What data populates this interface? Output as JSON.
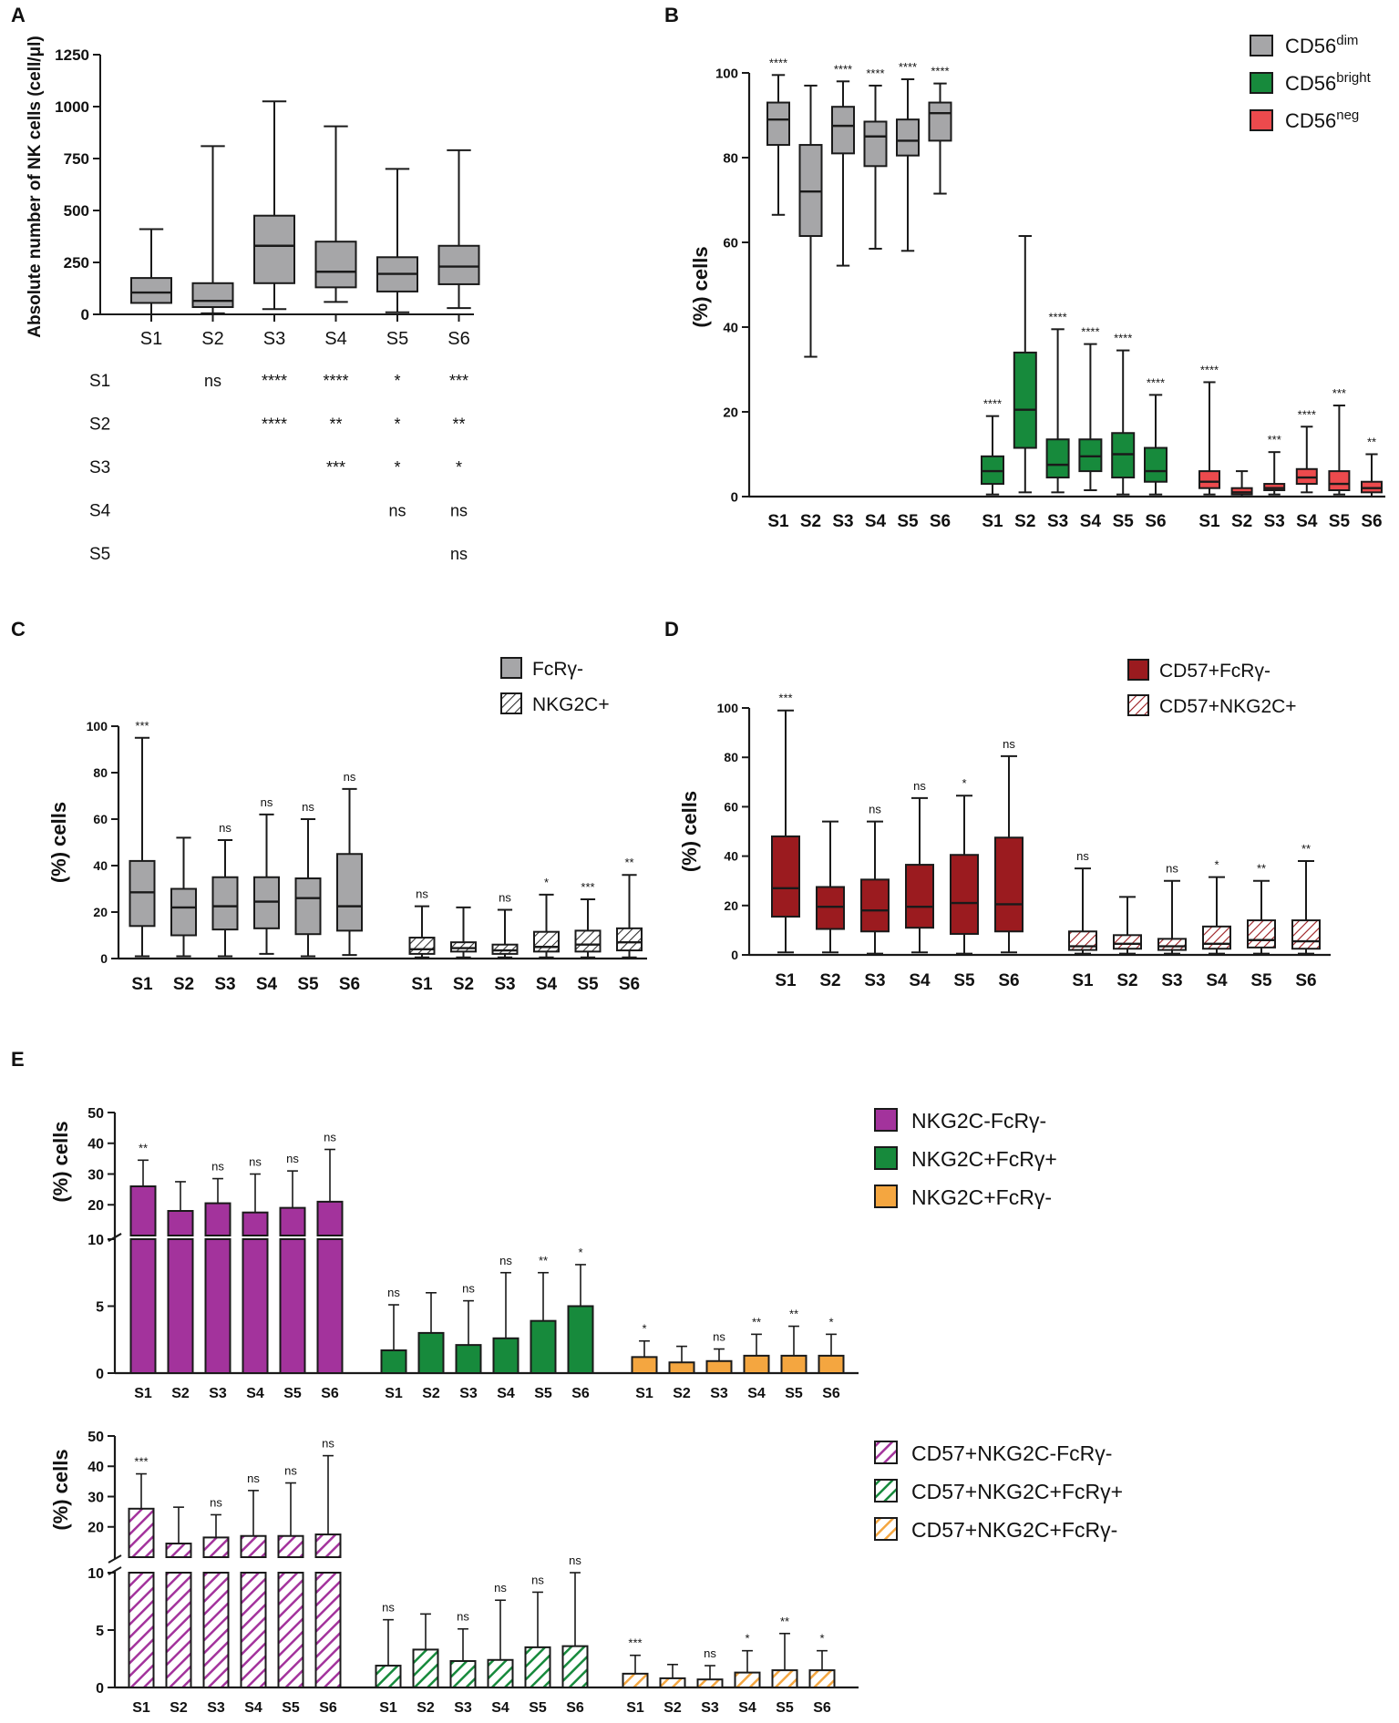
{
  "colors": {
    "gray": "#a6a6a8",
    "green": "#178a3c",
    "red": "#ec4a4d",
    "darkred": "#9b1b1f",
    "purple": "#a3339c",
    "orange": "#f4a640",
    "line": "#1a1a1a"
  },
  "chart_data": [
    {
      "panel": "A",
      "type": "box",
      "ylabel": "Absolute number of NK cells (cell/μl)",
      "ylim": [
        0,
        1250
      ],
      "yticks": [
        "0",
        "250",
        "500",
        "750",
        "1000",
        "1250"
      ],
      "categories": [
        "S1",
        "S2",
        "S3",
        "S4",
        "S5",
        "S6"
      ],
      "series": [
        {
          "name": "NK cells",
          "boxes": [
            {
              "min": 0,
              "q1": 55,
              "median": 105,
              "q3": 175,
              "max": 410
            },
            {
              "min": 5,
              "q1": 35,
              "median": 65,
              "q3": 150,
              "max": 810
            },
            {
              "min": 25,
              "q1": 150,
              "median": 330,
              "q3": 475,
              "max": 1025
            },
            {
              "min": 60,
              "q1": 130,
              "median": 205,
              "q3": 350,
              "max": 905
            },
            {
              "min": 10,
              "q1": 110,
              "median": 195,
              "q3": 275,
              "max": 700
            },
            {
              "min": 30,
              "q1": 145,
              "median": 230,
              "q3": 330,
              "max": 790
            }
          ]
        }
      ],
      "significance_matrix": {
        "columns": [
          "S1",
          "S2",
          "S3",
          "S4",
          "S5",
          "S6"
        ],
        "rows": [
          {
            "label": "S1",
            "cells": [
              "",
              "ns",
              "****",
              "****",
              "*",
              "***"
            ]
          },
          {
            "label": "S2",
            "cells": [
              "",
              "",
              "****",
              "**",
              "*",
              "**"
            ]
          },
          {
            "label": "S3",
            "cells": [
              "",
              "",
              "",
              "***",
              "*",
              "*"
            ]
          },
          {
            "label": "S4",
            "cells": [
              "",
              "",
              "",
              "",
              "ns",
              "ns"
            ]
          },
          {
            "label": "S5",
            "cells": [
              "",
              "",
              "",
              "",
              "",
              "ns"
            ]
          }
        ]
      }
    },
    {
      "panel": "B",
      "type": "box",
      "ylabel": "(%) cells",
      "ylim": [
        0,
        100
      ],
      "yticks": [
        "0",
        "20",
        "40",
        "60",
        "80",
        "100"
      ],
      "categories": [
        "S1",
        "S2",
        "S3",
        "S4",
        "S5",
        "S6"
      ],
      "legend": [
        {
          "base": "CD56",
          "sup": "dim"
        },
        {
          "base": "CD56",
          "sup": "bright"
        },
        {
          "base": "CD56",
          "sup": "neg"
        }
      ],
      "series": [
        {
          "name": "CD56dim",
          "boxes": [
            {
              "min": 66.5,
              "q1": 83,
              "median": 89,
              "q3": 93,
              "max": 99.5
            },
            {
              "min": 33,
              "q1": 61.5,
              "median": 72,
              "q3": 83,
              "max": 97
            },
            {
              "min": 54.5,
              "q1": 81,
              "median": 87.5,
              "q3": 92,
              "max": 98
            },
            {
              "min": 58.5,
              "q1": 78,
              "median": 85,
              "q3": 88.5,
              "max": 97
            },
            {
              "min": 58,
              "q1": 80.5,
              "median": 84,
              "q3": 89,
              "max": 98.5
            },
            {
              "min": 71.5,
              "q1": 84,
              "median": 90.5,
              "q3": 93,
              "max": 97.5
            }
          ],
          "sig": [
            "****",
            "",
            "****",
            "****",
            "****",
            "****"
          ]
        },
        {
          "name": "CD56bright",
          "boxes": [
            {
              "min": 0.5,
              "q1": 3,
              "median": 6,
              "q3": 9.5,
              "max": 19
            },
            {
              "min": 1,
              "q1": 11.5,
              "median": 20.5,
              "q3": 34,
              "max": 61.5
            },
            {
              "min": 1,
              "q1": 4.5,
              "median": 7.5,
              "q3": 13.5,
              "max": 39.5
            },
            {
              "min": 1.5,
              "q1": 6,
              "median": 9.5,
              "q3": 13.5,
              "max": 36
            },
            {
              "min": 0.5,
              "q1": 4.5,
              "median": 10,
              "q3": 15,
              "max": 34.5
            },
            {
              "min": 0.5,
              "q1": 3.5,
              "median": 6,
              "q3": 11.5,
              "max": 24
            }
          ],
          "sig": [
            "****",
            "",
            "****",
            "****",
            "****",
            "****"
          ]
        },
        {
          "name": "CD56neg",
          "boxes": [
            {
              "min": 0.5,
              "q1": 2,
              "median": 3.5,
              "q3": 6,
              "max": 27
            },
            {
              "min": 0,
              "q1": 0.5,
              "median": 1,
              "q3": 2,
              "max": 6
            },
            {
              "min": 0.5,
              "q1": 1.5,
              "median": 2,
              "q3": 3,
              "max": 10.5
            },
            {
              "min": 1,
              "q1": 3,
              "median": 4.5,
              "q3": 6.5,
              "max": 16.5
            },
            {
              "min": 0.5,
              "q1": 1.5,
              "median": 3,
              "q3": 6,
              "max": 21.5
            },
            {
              "min": 0,
              "q1": 1,
              "median": 2,
              "q3": 3.5,
              "max": 10
            }
          ],
          "sig": [
            "****",
            "",
            "***",
            "****",
            "***",
            "**"
          ]
        }
      ]
    },
    {
      "panel": "C",
      "type": "box",
      "ylabel": "(%) cells",
      "ylim": [
        0,
        100
      ],
      "yticks": [
        "0",
        "20",
        "40",
        "60",
        "80",
        "100"
      ],
      "categories": [
        "S1",
        "S2",
        "S3",
        "S4",
        "S5",
        "S6"
      ],
      "legend": [
        "FcRγ-",
        "NKG2C+"
      ],
      "series": [
        {
          "name": "FcRγ-",
          "boxes": [
            {
              "min": 1,
              "q1": 14,
              "median": 28.5,
              "q3": 42,
              "max": 95
            },
            {
              "min": 1,
              "q1": 10,
              "median": 22,
              "q3": 30,
              "max": 52
            },
            {
              "min": 1,
              "q1": 12.5,
              "median": 22.5,
              "q3": 35,
              "max": 51
            },
            {
              "min": 2,
              "q1": 13,
              "median": 24.5,
              "q3": 35,
              "max": 62
            },
            {
              "min": 1,
              "q1": 10.5,
              "median": 26,
              "q3": 34.5,
              "max": 60
            },
            {
              "min": 1.5,
              "q1": 12,
              "median": 22.5,
              "q3": 45,
              "max": 73
            }
          ],
          "sig": [
            "***",
            "",
            "ns",
            "ns",
            "ns",
            "ns"
          ]
        },
        {
          "name": "NKG2C+",
          "boxes": [
            {
              "min": 0.5,
              "q1": 2,
              "median": 4,
              "q3": 9,
              "max": 22.5
            },
            {
              "min": 0.5,
              "q1": 3,
              "median": 4.5,
              "q3": 7,
              "max": 22
            },
            {
              "min": 0.5,
              "q1": 2,
              "median": 3.5,
              "q3": 6,
              "max": 21
            },
            {
              "min": 0.5,
              "q1": 3,
              "median": 5,
              "q3": 11.5,
              "max": 27.5
            },
            {
              "min": 0.5,
              "q1": 3,
              "median": 6,
              "q3": 12,
              "max": 25.5
            },
            {
              "min": 0.5,
              "q1": 3.5,
              "median": 7,
              "q3": 13,
              "max": 36
            }
          ],
          "sig": [
            "ns",
            "",
            "ns",
            "*",
            "***",
            "**"
          ]
        }
      ]
    },
    {
      "panel": "D",
      "type": "box",
      "ylabel": "(%) cells",
      "ylim": [
        0,
        100
      ],
      "yticks": [
        "0",
        "20",
        "40",
        "60",
        "80",
        "100"
      ],
      "categories": [
        "S1",
        "S2",
        "S3",
        "S4",
        "S5",
        "S6"
      ],
      "legend": [
        "CD57+FcRγ-",
        "CD57+NKG2C+"
      ],
      "series": [
        {
          "name": "CD57+FcRγ-",
          "boxes": [
            {
              "min": 1,
              "q1": 15.5,
              "median": 27,
              "q3": 48,
              "max": 99
            },
            {
              "min": 1,
              "q1": 10.5,
              "median": 19.5,
              "q3": 27.5,
              "max": 54
            },
            {
              "min": 0.5,
              "q1": 9.5,
              "median": 18,
              "q3": 30.5,
              "max": 54
            },
            {
              "min": 1,
              "q1": 11,
              "median": 19.5,
              "q3": 36.5,
              "max": 63.5
            },
            {
              "min": 0.5,
              "q1": 8.5,
              "median": 21,
              "q3": 40.5,
              "max": 64.5
            },
            {
              "min": 1,
              "q1": 9.5,
              "median": 20.5,
              "q3": 47.5,
              "max": 80.5
            }
          ],
          "sig": [
            "***",
            "",
            "ns",
            "ns",
            "*",
            "ns"
          ]
        },
        {
          "name": "CD57+NKG2C+",
          "boxes": [
            {
              "min": 0.5,
              "q1": 2,
              "median": 3.5,
              "q3": 9.5,
              "max": 35
            },
            {
              "min": 0.5,
              "q1": 2.5,
              "median": 4.5,
              "q3": 8,
              "max": 23.5
            },
            {
              "min": 0.5,
              "q1": 2,
              "median": 3.5,
              "q3": 6.5,
              "max": 30
            },
            {
              "min": 0.5,
              "q1": 2.5,
              "median": 4.5,
              "q3": 11.5,
              "max": 31.5
            },
            {
              "min": 0.5,
              "q1": 3,
              "median": 6,
              "q3": 14,
              "max": 30
            },
            {
              "min": 0.5,
              "q1": 2.5,
              "median": 5.5,
              "q3": 14,
              "max": 38
            }
          ],
          "sig": [
            "ns",
            "",
            "ns",
            "*",
            "**",
            "**"
          ]
        }
      ]
    },
    {
      "panel": "E",
      "type": "bar",
      "ylabel": "(%) cells",
      "yticks_upper": [
        "20",
        "30",
        "40",
        "50"
      ],
      "yticks_lower": [
        "0",
        "5",
        "10"
      ],
      "categories": [
        "S1",
        "S2",
        "S3",
        "S4",
        "S5",
        "S6"
      ],
      "legend": [
        "NKG2C-FcRγ-",
        "NKG2C+FcRγ+",
        "NKG2C+FcRγ-"
      ],
      "series": [
        {
          "name": "NKG2C-FcRγ-",
          "values": [
            26,
            18,
            20.5,
            17.5,
            19,
            21
          ],
          "errors": [
            34.5,
            27.5,
            28.5,
            30,
            31,
            38
          ],
          "sig": [
            "**",
            "",
            "ns",
            "ns",
            "ns",
            "ns"
          ]
        },
        {
          "name": "NKG2C+FcRγ+",
          "values": [
            1.7,
            3,
            2.1,
            2.6,
            3.9,
            5
          ],
          "errors": [
            5.1,
            6,
            5.4,
            7.5,
            7.5,
            8.1
          ],
          "sig": [
            "ns",
            "",
            "ns",
            "ns",
            "**",
            "*"
          ]
        },
        {
          "name": "NKG2C+FcRγ-",
          "values": [
            1.2,
            0.8,
            0.9,
            1.3,
            1.3,
            1.3
          ],
          "errors": [
            2.4,
            2,
            1.8,
            2.9,
            3.5,
            2.9
          ],
          "sig": [
            "*",
            "",
            "ns",
            "**",
            "**",
            "*"
          ]
        }
      ]
    },
    {
      "panel": "E",
      "type": "bar",
      "hatched": true,
      "ylabel": "(%) cells",
      "yticks_upper": [
        "20",
        "30",
        "40",
        "50"
      ],
      "yticks_lower": [
        "0",
        "5",
        "10"
      ],
      "categories": [
        "S1",
        "S2",
        "S3",
        "S4",
        "S5",
        "S6"
      ],
      "legend": [
        "CD57+NKG2C-FcRγ-",
        "CD57+NKG2C+FcRγ+",
        "CD57+NKG2C+FcRγ-"
      ],
      "series": [
        {
          "name": "CD57+NKG2C-FcRγ-",
          "values": [
            26,
            14.5,
            16.5,
            17,
            17,
            17.5
          ],
          "errors": [
            37.5,
            26.5,
            24,
            32,
            34.5,
            43.5
          ],
          "sig": [
            "***",
            "",
            "ns",
            "ns",
            "ns",
            "ns"
          ]
        },
        {
          "name": "CD57+NKG2C+FcRγ+",
          "values": [
            1.9,
            3.3,
            2.3,
            2.4,
            3.5,
            3.6
          ],
          "errors": [
            5.9,
            6.4,
            5.1,
            7.6,
            8.3,
            10
          ],
          "sig": [
            "ns",
            "",
            "ns",
            "ns",
            "ns",
            "ns"
          ]
        },
        {
          "name": "CD57+NKG2C+FcRγ-",
          "values": [
            1.2,
            0.8,
            0.7,
            1.3,
            1.5,
            1.5
          ],
          "errors": [
            2.8,
            2,
            1.9,
            3.2,
            4.7,
            3.2
          ],
          "sig": [
            "***",
            "",
            "ns",
            "*",
            "**",
            "*"
          ]
        }
      ]
    }
  ]
}
